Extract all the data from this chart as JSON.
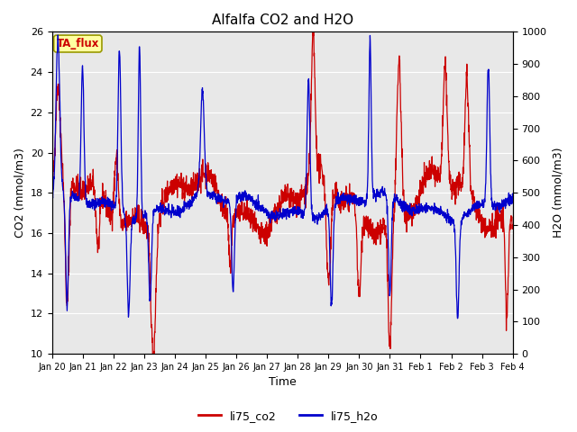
{
  "title": "Alfalfa CO2 and H2O",
  "xlabel": "Time",
  "ylabel_left": "CO2 (mmol/m3)",
  "ylabel_right": "H2O (mmol/m3)",
  "annotation_text": "TA_flux",
  "co2_color": "#CC0000",
  "h2o_color": "#0000CC",
  "ylim_left": [
    10,
    26
  ],
  "ylim_right": [
    0,
    1000
  ],
  "yticks_left": [
    10,
    12,
    14,
    16,
    18,
    20,
    22,
    24,
    26
  ],
  "yticks_right": [
    0,
    100,
    200,
    300,
    400,
    500,
    600,
    700,
    800,
    900,
    1000
  ],
  "bg_color": "#E8E8E8",
  "legend_co2": "li75_co2",
  "legend_h2o": "li75_h2o",
  "line_width": 0.9,
  "seed": 42,
  "xtick_labels": [
    "Jan 20",
    "Jan 21",
    "Jan 22",
    "Jan 23",
    "Jan 24",
    "Jan 25",
    "Jan 26",
    "Jan 27",
    "Jan 28",
    "Jan 29",
    "Jan 30",
    "Jan 31",
    "Feb 1",
    "Feb 2",
    "Feb 3",
    "Feb 4"
  ],
  "num_days": 15
}
